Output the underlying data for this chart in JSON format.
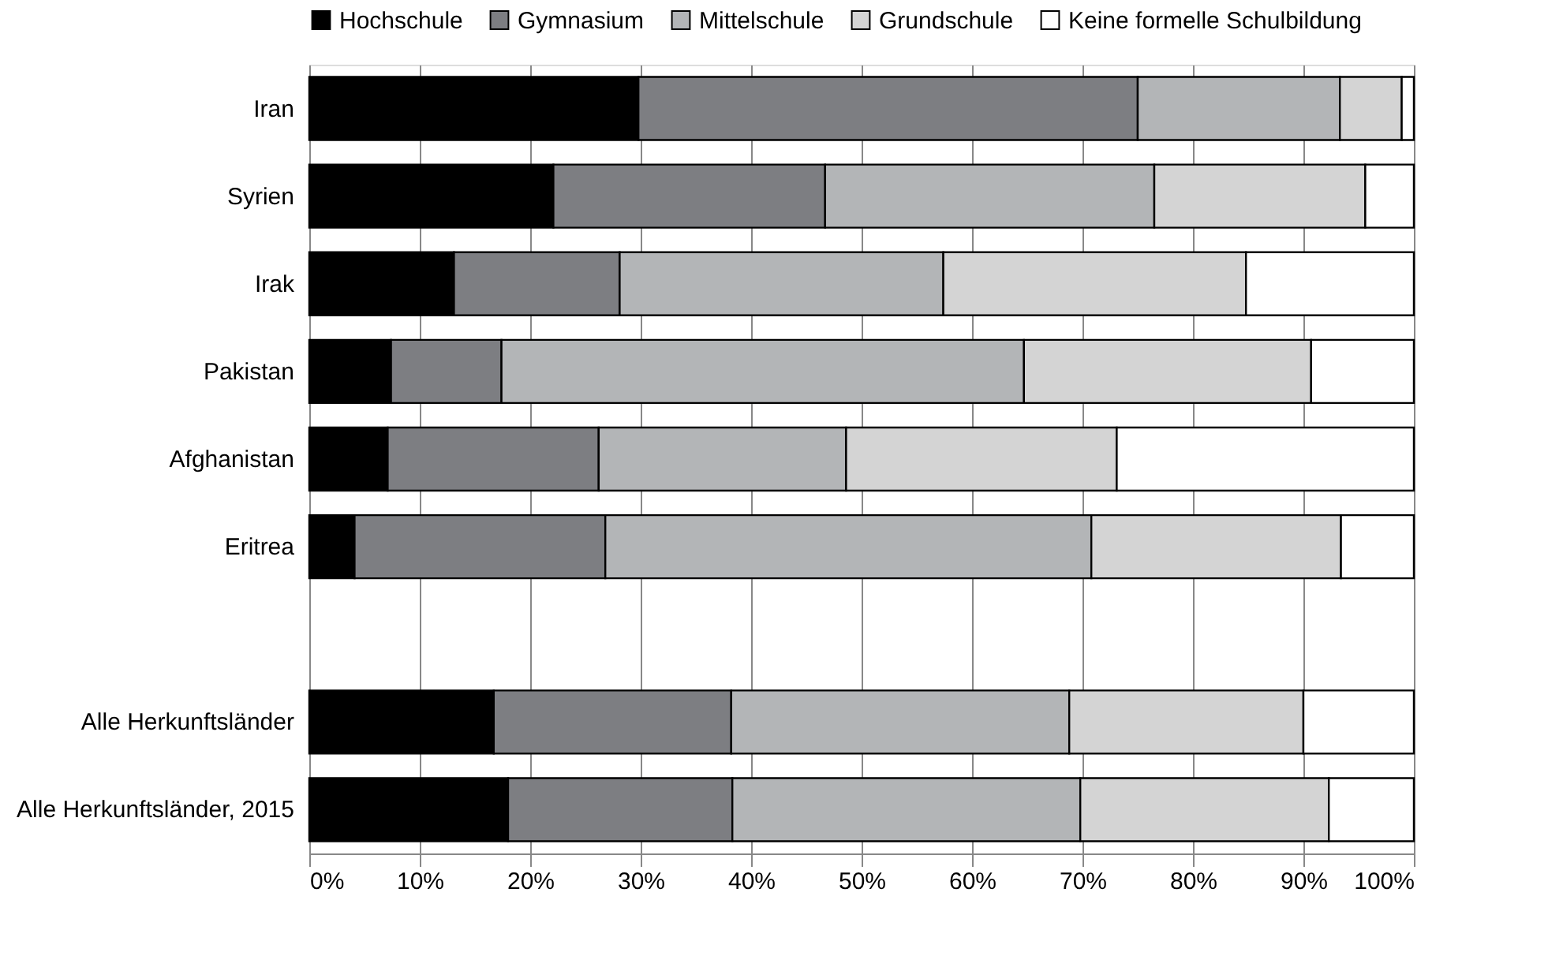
{
  "chart_data": {
    "type": "bar",
    "orientation": "horizontal",
    "stacked": true,
    "categories": [
      "Iran",
      "Syrien",
      "Irak",
      "Pakistan",
      "Afghanistan",
      "Eritrea",
      null,
      "Alle Herkunftsländer",
      "Alle Herkunftsländer, 2015"
    ],
    "series": [
      {
        "name": "Hochschule",
        "color": "#000000",
        "values": [
          29.8,
          22.1,
          13.1,
          7.4,
          7.1,
          4.1,
          null,
          16.7,
          18.0
        ]
      },
      {
        "name": "Gymnasium",
        "color": "#7d7e82",
        "values": [
          45.2,
          24.6,
          15.0,
          10.0,
          19.1,
          22.7,
          null,
          21.5,
          20.3
        ]
      },
      {
        "name": "Mittelschule",
        "color": "#b3b5b7",
        "values": [
          18.3,
          29.8,
          29.3,
          47.3,
          22.4,
          44.0,
          null,
          30.6,
          31.5
        ]
      },
      {
        "name": "Grundschule",
        "color": "#d4d4d4",
        "values": [
          5.6,
          19.1,
          27.4,
          26.0,
          24.5,
          22.6,
          null,
          21.2,
          22.5
        ]
      },
      {
        "name": "Keine formelle Schulbildung",
        "color": "#ffffff",
        "values": [
          1.1,
          4.4,
          15.2,
          9.3,
          26.9,
          6.6,
          null,
          10.0,
          7.7
        ]
      }
    ],
    "xlim": [
      0,
      100
    ],
    "xticks": [
      {
        "value": 0,
        "label": "0%"
      },
      {
        "value": 10,
        "label": "10%"
      },
      {
        "value": 20,
        "label": "20%"
      },
      {
        "value": 30,
        "label": "30%"
      },
      {
        "value": 40,
        "label": "40%"
      },
      {
        "value": 50,
        "label": "50%"
      },
      {
        "value": 60,
        "label": "60%"
      },
      {
        "value": 70,
        "label": "70%"
      },
      {
        "value": 80,
        "label": "80%"
      },
      {
        "value": 90,
        "label": "90%"
      },
      {
        "value": 100,
        "label": "100%"
      }
    ],
    "grid": "x",
    "legend": "top"
  }
}
